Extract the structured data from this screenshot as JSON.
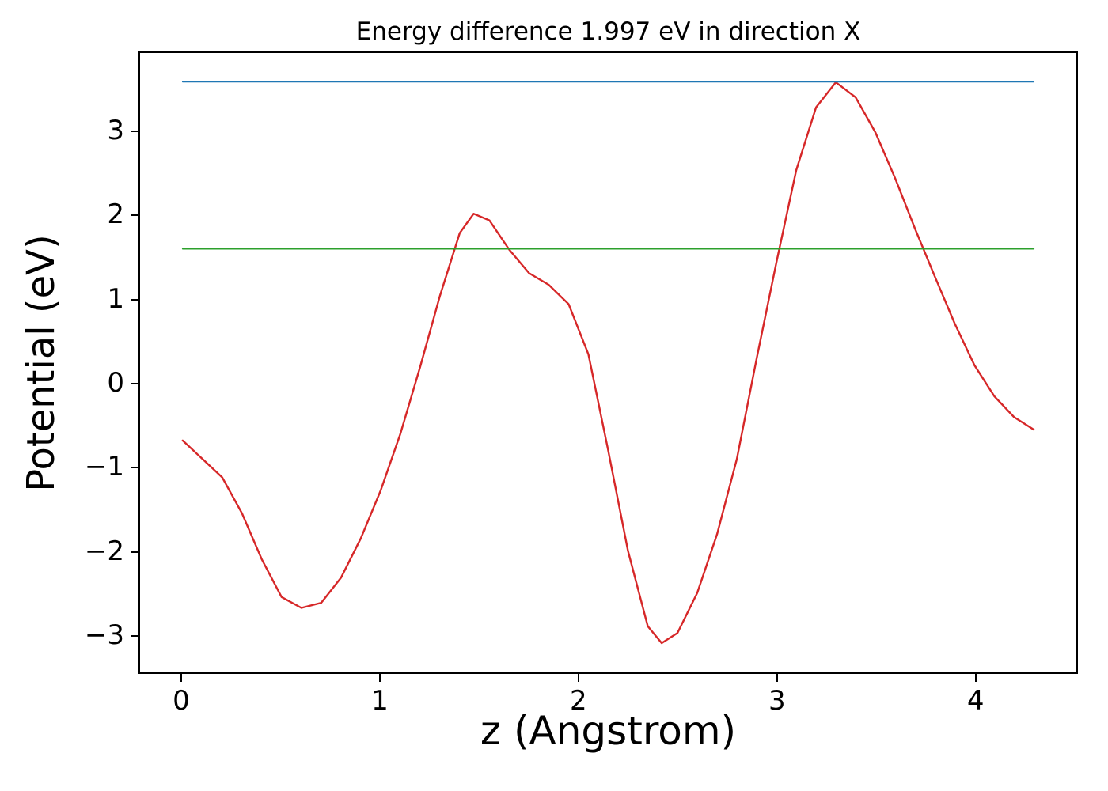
{
  "figure": {
    "background": "#ffffff"
  },
  "chart_data": {
    "type": "line",
    "title": "Energy difference 1.997 eV in direction X",
    "xlabel": "z (Angstrom)",
    "ylabel": "Potential (eV)",
    "xlim": [
      -0.215,
      4.515
    ],
    "ylim": [
      -3.45,
      3.95
    ],
    "xticks": [
      0,
      1,
      2,
      3,
      4
    ],
    "xtick_labels": [
      "0",
      "1",
      "2",
      "3",
      "4"
    ],
    "yticks": [
      -3,
      -2,
      -1,
      0,
      1,
      2,
      3
    ],
    "ytick_labels": [
      "−3",
      "−2",
      "−1",
      "0",
      "1",
      "2",
      "3"
    ],
    "grid": false,
    "legend": "none",
    "energy_difference_eV": 1.997,
    "series": [
      {
        "name": "potential-curve",
        "color": "#d62728",
        "line_width": 2.4,
        "x": [
          0,
          0.1,
          0.2,
          0.3,
          0.4,
          0.5,
          0.6,
          0.7,
          0.8,
          0.9,
          1.0,
          1.1,
          1.2,
          1.3,
          1.4,
          1.47,
          1.55,
          1.65,
          1.75,
          1.85,
          1.95,
          2.05,
          2.15,
          2.25,
          2.35,
          2.42,
          2.5,
          2.6,
          2.7,
          2.8,
          2.9,
          3.0,
          3.1,
          3.2,
          3.3,
          3.4,
          3.5,
          3.6,
          3.7,
          3.8,
          3.9,
          4.0,
          4.1,
          4.2,
          4.3
        ],
        "y": [
          -0.68,
          -0.9,
          -1.12,
          -1.55,
          -2.1,
          -2.55,
          -2.68,
          -2.62,
          -2.32,
          -1.85,
          -1.28,
          -0.6,
          0.2,
          1.05,
          1.8,
          2.03,
          1.95,
          1.6,
          1.32,
          1.18,
          0.95,
          0.35,
          -0.8,
          -2.0,
          -2.9,
          -3.1,
          -2.98,
          -2.5,
          -1.8,
          -0.9,
          0.3,
          1.45,
          2.55,
          3.3,
          3.6,
          3.42,
          3.0,
          2.45,
          1.85,
          1.28,
          0.72,
          0.22,
          -0.15,
          -0.4,
          -0.55
        ]
      }
    ],
    "hlines": [
      {
        "name": "upper-energy-level",
        "value": 3.607,
        "color": "#1f77b4",
        "xmin": 0.0,
        "xmax": 4.3,
        "line_width": 1.8
      },
      {
        "name": "lower-energy-level",
        "value": 1.61,
        "color": "#2ca02c",
        "xmin": 0.0,
        "xmax": 4.3,
        "line_width": 1.8
      }
    ]
  }
}
